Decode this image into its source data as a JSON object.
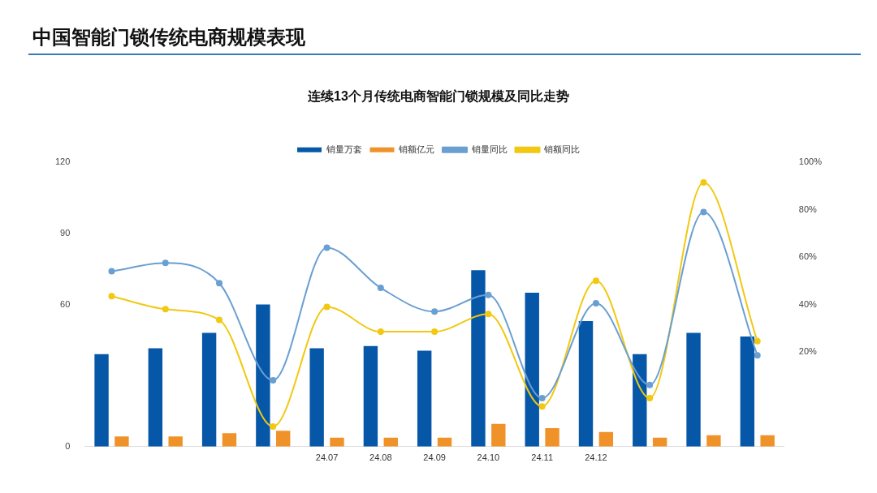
{
  "chart_data": {
    "type": "bar",
    "title": "中国智能门锁传统电商规模表现",
    "subtitle": "连续13个月传统电商智能门锁规模及同比走势",
    "categories": [
      null,
      null,
      null,
      null,
      "24.07",
      "24.08",
      "24.09",
      "24.10",
      "24.11",
      "24.12",
      null,
      null,
      null
    ],
    "series": [
      {
        "name": "销量万套",
        "color": "#0757a8",
        "values": [
          39,
          41.5,
          48,
          60,
          41.5,
          42.5,
          40.5,
          74.5,
          65,
          53,
          39,
          48,
          46.5
        ]
      },
      {
        "name": "销额亿元",
        "color": "#f0922a",
        "values": [
          4.3,
          4.3,
          5.7,
          6.7,
          3.8,
          3.8,
          3.8,
          9.6,
          7.8,
          6.2,
          3.8,
          4.8,
          4.8
        ]
      },
      {
        "name": "销量同比",
        "type": "line",
        "axis": "y2",
        "color": "#6a9fd2",
        "values": [
          54,
          57.5,
          49,
          8,
          64,
          47,
          37,
          44,
          0.5,
          40.5,
          6,
          79,
          18.5
        ]
      },
      {
        "name": "销额同比",
        "type": "line",
        "axis": "y2",
        "color": "#f2c811",
        "values": [
          43.5,
          38,
          33.5,
          -11.5,
          39,
          28.5,
          28.5,
          36,
          -3,
          50,
          0.5,
          91.5,
          24.5
        ]
      }
    ],
    "ylim": [
      0,
      120
    ],
    "yticks": [
      0,
      60,
      90,
      120
    ],
    "y2lim": [
      -20,
      100
    ],
    "y2ticks": [
      {
        "value": 20,
        "label": "20%"
      },
      {
        "value": 40,
        "label": "40%"
      },
      {
        "value": 60,
        "label": "60%"
      },
      {
        "value": 80,
        "label": "80%"
      },
      {
        "value": 100,
        "label": "100%"
      }
    ],
    "grid": false,
    "legend": "top",
    "marker": "circle"
  }
}
